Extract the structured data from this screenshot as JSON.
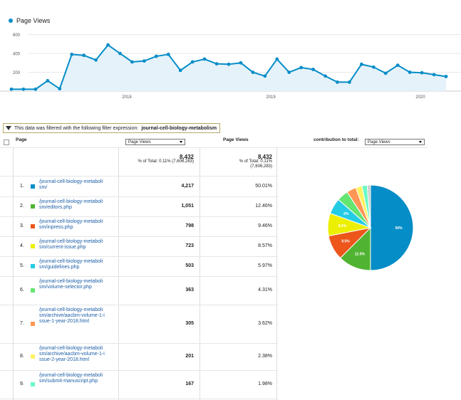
{
  "legend": {
    "series_label": "Page Views",
    "color": "#058dc7"
  },
  "chart_data": {
    "type": "area",
    "series": [
      {
        "name": "Page Views",
        "values": [
          20,
          20,
          20,
          110,
          25,
          390,
          380,
          330,
          490,
          400,
          310,
          320,
          370,
          390,
          220,
          310,
          340,
          290,
          285,
          300,
          200,
          160,
          340,
          200,
          250,
          230,
          160,
          95,
          95,
          285,
          255,
          190,
          275,
          200,
          195,
          175,
          155
        ]
      }
    ],
    "yticks": [
      200,
      400,
      600
    ],
    "ylim": [
      0,
      620
    ],
    "xticks": [
      "2018",
      "2019",
      "2020"
    ],
    "grid": true
  },
  "filter": {
    "text": "This data was filtered with the following filter expression:",
    "expression": "journal-cell-biology-metabolism"
  },
  "table": {
    "header_page": "Page",
    "header_pageviews": "Page Views",
    "header_contribution": "contribution to total:",
    "select_primary": "Page Views",
    "select_contribution": "Page Views",
    "total_left": {
      "value": "8,432",
      "line1": "% of Total: 0.11% (7,606,283)"
    },
    "total_right": {
      "value": "8,432",
      "line1": "% of Total: 0.11%",
      "line2": "(7,606,283)"
    },
    "rows": [
      {
        "num": "1.",
        "page": "/journal-cell-biology-metabolism/",
        "views": "4,217",
        "pct": "50.01%",
        "color": "#058dc7"
      },
      {
        "num": "2.",
        "page": "/journal-cell-biology-metabolism/editors.php",
        "views": "1,051",
        "pct": "12.46%",
        "color": "#50b432"
      },
      {
        "num": "3.",
        "page": "/journal-cell-biology-metabolism/inpress.php",
        "views": "798",
        "pct": "9.46%",
        "color": "#ed561b"
      },
      {
        "num": "4.",
        "page": "/journal-cell-biology-metabolism/current-issue.php",
        "views": "723",
        "pct": "8.57%",
        "color": "#edef00"
      },
      {
        "num": "5.",
        "page": "/journal-cell-biology-metabolism/guidelines.php",
        "views": "503",
        "pct": "5.97%",
        "color": "#24cbe5"
      },
      {
        "num": "6.",
        "page": "/journal-cell-biology-metabolism/volume-selector.php",
        "views": "363",
        "pct": "4.31%",
        "color": "#64e572"
      },
      {
        "num": "7.",
        "page": "/journal-cell-biology-metabolism/archive/aacbm-volume-1-issue-1-year-2018.html",
        "views": "305",
        "pct": "3.62%",
        "color": "#ff9655"
      },
      {
        "num": "8.",
        "page": "/journal-cell-biology-metabolism/archive/aacbm-volume-1-issue-2-year-2018.html",
        "views": "201",
        "pct": "2.38%",
        "color": "#fff263"
      },
      {
        "num": "9.",
        "page": "/journal-cell-biology-metabolism/submit-manuscript.php",
        "views": "167",
        "pct": "1.98%",
        "color": "#6af9c4"
      }
    ]
  },
  "pie": {
    "values": [
      50.01,
      12.46,
      9.46,
      8.57,
      5.97,
      4.31,
      3.62,
      2.38,
      1.98,
      1.24
    ],
    "colors": [
      "#058dc7",
      "#50b432",
      "#ed561b",
      "#edef00",
      "#24cbe5",
      "#64e572",
      "#ff9655",
      "#fff263",
      "#6af9c4",
      "#cccccc"
    ],
    "labels": [
      "50%",
      "12.5%",
      "9.5%",
      "8.6%",
      "6%",
      "",
      "",
      "",
      "",
      ""
    ]
  }
}
